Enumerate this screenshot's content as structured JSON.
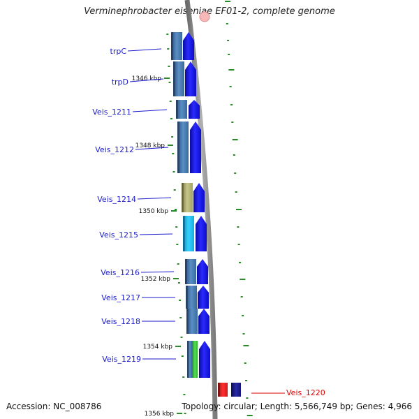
{
  "title": "Verminephrobacter eiseniae EF01-2, complete genome",
  "accession": "Accession: NC_008786",
  "summary": "Topology: circular; Length: 5,566,749 bp; Genes: 4,966",
  "colors": {
    "genome_line": "#8c8c8c",
    "gene_label": "#1a1acc",
    "highlight_label": "#e00000",
    "tick_green": "#2a8a2a",
    "arrow_blue": "#1414f0",
    "gene_steelblue": "#4a7fb5",
    "gene_olive": "#b8b878",
    "gene_cyan": "#1ab8ec",
    "gene_green": "#3cc43c",
    "gene_red": "#e61e1e",
    "gene_navy": "#1a1a8a"
  },
  "kbp_ticks": [
    {
      "label": "1346 kbp"
    },
    {
      "label": "1348 kbp"
    },
    {
      "label": "1350 kbp"
    },
    {
      "label": "1352 kbp"
    },
    {
      "label": "1354 kbp"
    },
    {
      "label": "1356 kbp"
    }
  ],
  "genes": [
    {
      "name": "trpC",
      "color": "gene_steelblue"
    },
    {
      "name": "trpD",
      "color": "gene_steelblue"
    },
    {
      "name": "Veis_1211",
      "color": "gene_steelblue"
    },
    {
      "name": "Veis_1212",
      "color": "gene_steelblue"
    },
    {
      "name": "Veis_1214",
      "color": "gene_olive"
    },
    {
      "name": "Veis_1215",
      "color": "gene_cyan"
    },
    {
      "name": "Veis_1216",
      "color": "gene_steelblue"
    },
    {
      "name": "Veis_1217",
      "color": "gene_steelblue"
    },
    {
      "name": "Veis_1218",
      "color": "gene_steelblue"
    },
    {
      "name": "Veis_1219",
      "color": "gene_green"
    },
    {
      "name": "Veis_1220",
      "color": "gene_red"
    }
  ]
}
